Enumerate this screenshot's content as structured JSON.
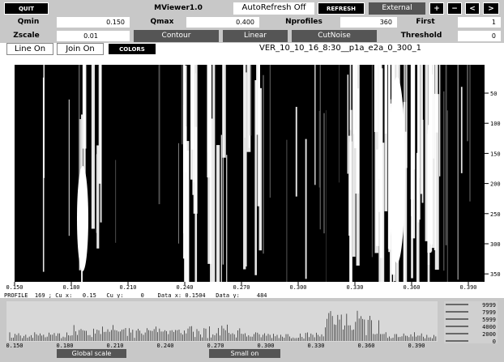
{
  "toolbar": {
    "quit": "QUIT",
    "app_title": "MViewer1.0",
    "autorefresh": "AutoRefresh Off",
    "refresh": "REFRESH",
    "external": "External",
    "plus": "+",
    "minus": "−",
    "prev": "<",
    "next": ">"
  },
  "params": {
    "qmin_label": "Qmin",
    "qmin": "0.150",
    "qmax_label": "Qmax",
    "qmax": "0.400",
    "nprofiles_label": "Nprofiles",
    "nprofiles": "360",
    "first_label": "First",
    "first": "1",
    "zscale_label": "Zscale",
    "zscale": "0.01",
    "contour": "Contour",
    "linear": "Linear",
    "cutnoise": "CutNoise",
    "threshold_label": "Threshold",
    "threshold": "0"
  },
  "options": {
    "line_on": "Line On",
    "join_on": "Join On",
    "colors": "COLORS",
    "dataset": "VER_10_10_16_8:30__p1a_e2a_0_300_1"
  },
  "image": {
    "x_labels": [
      "0.150",
      "0.180",
      "0.210",
      "0.240",
      "0.270",
      "0.300",
      "0.330",
      "0.360",
      "0.390"
    ],
    "y_labels": [
      "50",
      "100",
      "150",
      "200",
      "250",
      "300",
      "350"
    ]
  },
  "status": "PROFILE  169 ; Cu x:   0.15   Cu y:     0    Data x: 0.1504   Data y:     484",
  "histogram": {
    "x_labels": [
      "0.150",
      "0.180",
      "0.210",
      "0.240",
      "0.270",
      "0.300",
      "0.330",
      "0.360",
      "0.390"
    ],
    "scale_labels": [
      "9999",
      "7999",
      "5999",
      "4000",
      "2000",
      "0"
    ]
  },
  "footer": {
    "global_scale": "Global scale",
    "small_on": "Small on"
  }
}
